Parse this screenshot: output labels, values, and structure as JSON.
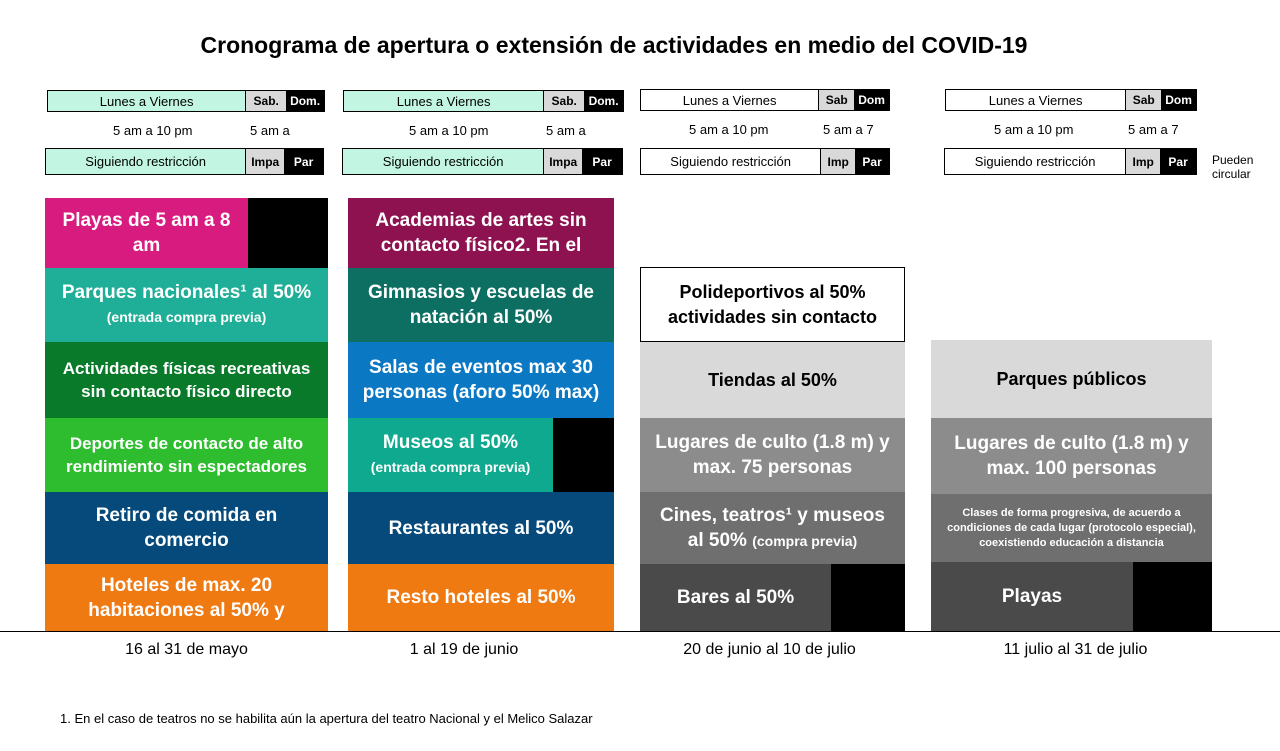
{
  "title": "Cronograma de apertura o extensión de actividades en medio del COVID-19",
  "schedule_bars": [
    {
      "weekday": "Lunes a Viernes",
      "sat": "Sab.",
      "sun": "Dom.",
      "weekday_hours": "5 am a 10 pm",
      "weekend_hours": "5 am a",
      "restriction": "Siguiendo restricción",
      "odd": "Impa",
      "even": "Par"
    },
    {
      "weekday": "Lunes a Viernes",
      "sat": "Sab.",
      "sun": "Dom.",
      "weekday_hours": "5 am a 10 pm",
      "weekend_hours": "5 am a",
      "restriction": "Siguiendo restricción",
      "odd": "Impa",
      "even": "Par"
    },
    {
      "weekday": "Lunes a Viernes",
      "sat": "Sab",
      "sun": "Dom",
      "weekday_hours": "5 am a 10 pm",
      "weekend_hours": "5 am a 7",
      "restriction": "Siguiendo restricción",
      "odd": "Imp",
      "even": "Par"
    },
    {
      "weekday": "Lunes a Viernes",
      "sat": "Sab",
      "sun": "Dom",
      "weekday_hours": "5 am a 10 pm",
      "weekend_hours": "5 am a 7",
      "restriction": "Siguiendo restricción",
      "odd": "Imp",
      "even": "Par"
    }
  ],
  "circulation_note": "Pueden circular",
  "phase1": {
    "b1": "Playas de 5 am a 8 am",
    "b2_main": "Parques nacionales¹ al 50%",
    "b2_sub": "(entrada compra previa)",
    "b3": "Actividades físicas recreativas sin contacto físico directo",
    "b4": "Deportes de contacto de alto rendimiento sin espectadores",
    "b5": "Retiro de comida en comercio",
    "b6": "Hoteles de max. 20 habitaciones al 50% y"
  },
  "phase2": {
    "b1": "Academias de artes sin contacto físico2. En el",
    "b2": "Gimnasios y escuelas de natación al 50%",
    "b3": "Salas de eventos max 30 personas (aforo 50% max)",
    "b4_main": "Museos al 50%",
    "b4_sub": "(entrada compra previa)",
    "b5": "Restaurantes al 50%",
    "b6": "Resto hoteles al 50%"
  },
  "phase3": {
    "b1": "Polideportivos al 50% actividades sin contacto",
    "b2": "Tiendas al 50%",
    "b3": "Lugares de culto (1.8 m) y max. 75 personas",
    "b4_main": "Cines, teatros¹ y museos al 50%",
    "b4_sub": "(compra previa)",
    "b5": "Bares al 50%"
  },
  "phase4": {
    "b1": "Parques públicos",
    "b2": "Lugares de culto (1.8 m) y max. 100 personas",
    "b3": "Clases de forma progresiva, de acuerdo a condiciones de cada lugar (protocolo especial), coexistiendo educación a distancia",
    "b4": "Playas"
  },
  "periods": [
    "16 al 31 de mayo",
    "1 al 19 de junio",
    "20 de junio al 10 de julio",
    "11 julio al 31 de julio"
  ],
  "footnote": "1. En el caso de teatros no se habilita aún la apertura del teatro Nacional y el Melico Salazar",
  "colors": {
    "mint": "#c2f6e3",
    "magenta": "#d81b7e",
    "teal": "#1fae97",
    "dark_green": "#087a2a",
    "green": "#2ebd2e",
    "navy": "#064a7c",
    "orange": "#f07a12",
    "purple": "#8e1250",
    "dark_teal": "#0d6e62",
    "blue": "#0b78c4",
    "mid_teal": "#0fa98f",
    "light_gray": "#d9d9d9",
    "gray": "#8c8c8c",
    "mid_gray": "#6f6f6f",
    "dark_gray": "#4a4a4a"
  }
}
